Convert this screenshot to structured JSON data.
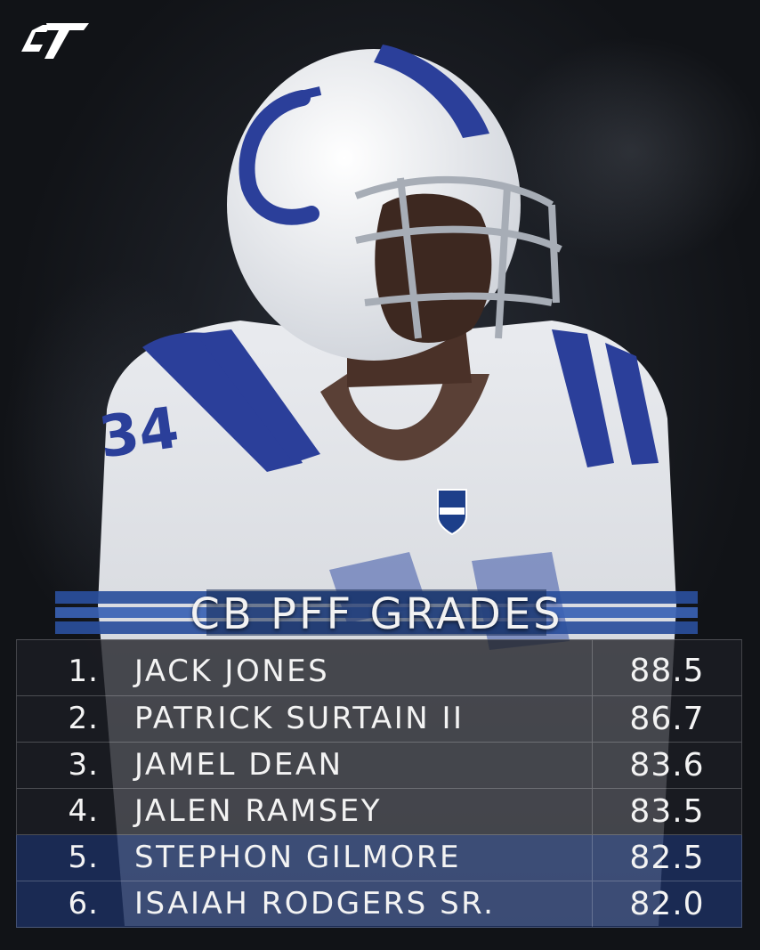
{
  "title": "CB PFF GRADES",
  "logo_text": "CT",
  "jersey_number": "34",
  "colors": {
    "accent": "#2a4f9c",
    "highlight_row": "#1c3060",
    "text": "#f3f3f3"
  },
  "rows": [
    {
      "rank": "1.",
      "name": "JACK JONES",
      "grade": "88.5"
    },
    {
      "rank": "2.",
      "name": "PATRICK SURTAIN II",
      "grade": "86.7"
    },
    {
      "rank": "3.",
      "name": "JAMEL DEAN",
      "grade": "83.6"
    },
    {
      "rank": "4.",
      "name": "JALEN RAMSEY",
      "grade": "83.5"
    },
    {
      "rank": "5.",
      "name": "STEPHON GILMORE",
      "grade": "82.5"
    },
    {
      "rank": "6.",
      "name": "ISAIAH RODGERS SR.",
      "grade": "82.0"
    }
  ]
}
